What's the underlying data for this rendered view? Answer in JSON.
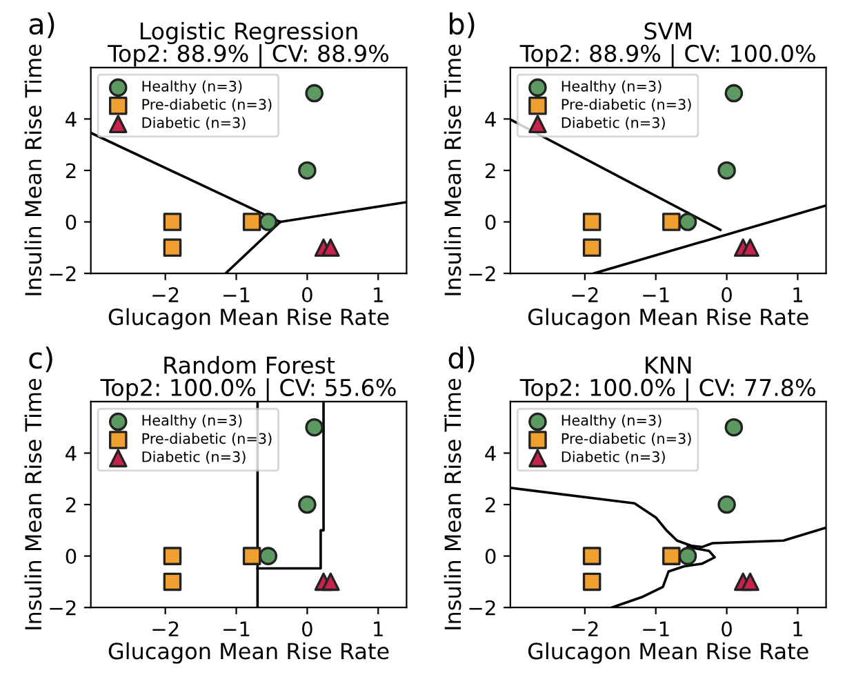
{
  "chart_data": [
    {
      "type": "scatter",
      "title": "Logistic Regression",
      "subtitle": "Top2: 88.9% | CV: 88.9%",
      "annotations": [
        "a)"
      ],
      "xlabel": "Glucagon Mean Rise Rate",
      "ylabel": "Insulin Mean Rise Time",
      "xlim": [
        -3.05,
        1.4
      ],
      "ylim": [
        -2,
        6
      ],
      "xticks": [
        -2,
        -1,
        0,
        1
      ],
      "yticks": [
        -2,
        0,
        2,
        4
      ],
      "legend": "top left",
      "grid": false,
      "series": [
        {
          "name": "Healthy (n=3)",
          "color": "#5c9a62",
          "marker": "circle",
          "x": [
            0.1,
            0,
            -0.55
          ],
          "values": [
            5,
            2,
            0
          ]
        },
        {
          "name": "Pre-diabetic (n=3)",
          "color": "#f0a030",
          "marker": "square",
          "x": [
            -1.9,
            -1.9,
            -0.78
          ],
          "values": [
            0,
            -1,
            0
          ]
        },
        {
          "name": "Diabetic (n=3)",
          "color": "#c8234a",
          "marker": "triangle",
          "x": [
            0.23,
            0.33
          ],
          "values": [
            -1,
            -1
          ]
        },
        {
          "type": "line",
          "color": "#000000",
          "marker": "none",
          "x": [
            -3.05,
            -0.38
          ],
          "values": [
            3.46,
            0
          ]
        },
        {
          "type": "line",
          "color": "#000000",
          "marker": "none",
          "x": [
            -0.38,
            1.4
          ],
          "values": [
            0,
            0.77
          ]
        },
        {
          "type": "line",
          "color": "#000000",
          "marker": "none",
          "x": [
            -0.38,
            -1.15
          ],
          "values": [
            0,
            -2
          ]
        }
      ]
    },
    {
      "type": "scatter",
      "title": "SVM",
      "subtitle": "Top2: 88.9% | CV: 100.0%",
      "annotations": [
        "b)"
      ],
      "xlabel": "Glucagon Mean Rise Rate",
      "ylabel": "Insulin Mean Rise Time",
      "xlim": [
        -3.05,
        1.4
      ],
      "ylim": [
        -2,
        6
      ],
      "xticks": [
        -2,
        -1,
        0,
        1
      ],
      "yticks": [
        -2,
        0,
        2,
        4
      ],
      "legend": "top left",
      "grid": false,
      "series": [
        {
          "name": "Healthy (n=3)",
          "color": "#5c9a62",
          "marker": "circle",
          "x": [
            0.1,
            0,
            -0.55
          ],
          "values": [
            5,
            2,
            0
          ]
        },
        {
          "name": "Pre-diabetic (n=3)",
          "color": "#f0a030",
          "marker": "square",
          "x": [
            -1.9,
            -1.9,
            -0.78
          ],
          "values": [
            0,
            -1,
            0
          ]
        },
        {
          "name": "Diabetic (n=3)",
          "color": "#c8234a",
          "marker": "triangle",
          "x": [
            0.23,
            0.33
          ],
          "values": [
            -1,
            -1
          ]
        },
        {
          "type": "line",
          "color": "#000000",
          "marker": "none",
          "x": [
            -3.05,
            -0.09
          ],
          "values": [
            3.98,
            -0.31
          ]
        },
        {
          "type": "line",
          "color": "#000000",
          "marker": "none",
          "x": [
            -1.87,
            1.4
          ],
          "values": [
            -2,
            0.64
          ]
        }
      ]
    },
    {
      "type": "scatter",
      "title": "Random Forest",
      "subtitle": "Top2: 100.0% | CV: 55.6%",
      "annotations": [
        "c)"
      ],
      "xlabel": "Glucagon Mean Rise Rate",
      "ylabel": "Insulin Mean Rise Time",
      "xlim": [
        -3.05,
        1.4
      ],
      "ylim": [
        -2,
        6
      ],
      "xticks": [
        -2,
        -1,
        0,
        1
      ],
      "yticks": [
        -2,
        0,
        2,
        4
      ],
      "legend": "top left",
      "grid": false,
      "series": [
        {
          "name": "Healthy (n=3)",
          "color": "#5c9a62",
          "marker": "circle",
          "x": [
            0.1,
            0,
            -0.55
          ],
          "values": [
            5,
            2,
            0
          ]
        },
        {
          "name": "Pre-diabetic (n=3)",
          "color": "#f0a030",
          "marker": "square",
          "x": [
            -1.9,
            -1.9,
            -0.78
          ],
          "values": [
            0,
            -1,
            0
          ]
        },
        {
          "name": "Diabetic (n=3)",
          "color": "#c8234a",
          "marker": "triangle",
          "x": [
            0.23,
            0.33
          ],
          "values": [
            -1,
            -1
          ]
        },
        {
          "type": "line",
          "color": "#000000",
          "marker": "none",
          "x": [
            -0.7,
            -0.7
          ],
          "values": [
            -2,
            6
          ]
        },
        {
          "type": "line",
          "color": "#000000",
          "marker": "none",
          "x": [
            -0.7,
            0.19,
            0.19,
            0.23,
            0.23
          ],
          "values": [
            -0.48,
            -0.48,
            1.0,
            1.0,
            6
          ]
        }
      ]
    },
    {
      "type": "scatter",
      "title": "KNN",
      "subtitle": "Top2: 100.0% | CV: 77.8%",
      "annotations": [
        "d)"
      ],
      "xlabel": "Glucagon Mean Rise Rate",
      "ylabel": "Insulin Mean Rise Time",
      "xlim": [
        -3.05,
        1.4
      ],
      "ylim": [
        -2,
        6
      ],
      "xticks": [
        -2,
        -1,
        0,
        1
      ],
      "yticks": [
        -2,
        0,
        2,
        4
      ],
      "legend": "top left",
      "grid": false,
      "series": [
        {
          "name": "Healthy (n=3)",
          "color": "#5c9a62",
          "marker": "circle",
          "x": [
            0.1,
            0,
            -0.55
          ],
          "values": [
            5,
            2,
            0
          ]
        },
        {
          "name": "Pre-diabetic (n=3)",
          "color": "#f0a030",
          "marker": "square",
          "x": [
            -1.9,
            -1.9,
            -0.78
          ],
          "values": [
            0,
            -1,
            0
          ]
        },
        {
          "name": "Diabetic (n=3)",
          "color": "#c8234a",
          "marker": "triangle",
          "x": [
            0.23,
            0.33
          ],
          "values": [
            -1,
            -1
          ]
        },
        {
          "type": "line",
          "color": "#000000",
          "marker": "none",
          "x": [
            -3.05,
            -1.3,
            -1.0,
            -0.85,
            -0.7,
            -0.5,
            -0.35,
            -0.2,
            0.8,
            1.4
          ],
          "values": [
            2.65,
            2.05,
            1.5,
            1.0,
            0.6,
            0.4,
            0.35,
            0.5,
            0.6,
            1.1
          ]
        },
        {
          "type": "line",
          "color": "#000000",
          "marker": "none",
          "x": [
            -1.62,
            -1.2,
            -0.9,
            -0.82,
            -0.6,
            -0.35,
            -0.17,
            -0.25,
            -0.45,
            -0.55
          ],
          "values": [
            -2,
            -1.6,
            -1.2,
            -0.6,
            -0.4,
            -0.3,
            -0.05,
            0.2,
            0.3,
            0.38
          ]
        }
      ]
    }
  ]
}
